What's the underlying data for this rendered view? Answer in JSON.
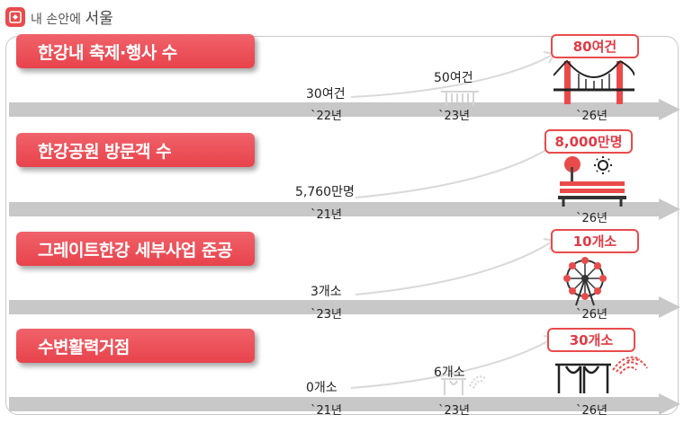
{
  "brand": {
    "prefix": "내 손안에",
    "name": "서울"
  },
  "colors": {
    "accent": "#e94b4b",
    "arrow": "#c8c8c8",
    "curve": "#d9d9d9"
  },
  "chart_data": [
    {
      "type": "line",
      "title": "한강내 축제·행사 수",
      "points": [
        {
          "x": "`22년",
          "label": "30여건",
          "value": 30
        },
        {
          "x": "`23년",
          "label": "50여건",
          "value": 50
        },
        {
          "x": "`26년",
          "label": "80여건",
          "value": 80,
          "target": true
        }
      ]
    },
    {
      "type": "line",
      "title": "한강공원 방문객 수",
      "points": [
        {
          "x": "`21년",
          "label": "5,760만명",
          "value": 5760
        },
        {
          "x": "`26년",
          "label": "8,000만명",
          "value": 8000,
          "target": true
        }
      ]
    },
    {
      "type": "line",
      "title": "그레이트한강 세부사업 준공",
      "points": [
        {
          "x": "`23년",
          "label": "3개소",
          "value": 3
        },
        {
          "x": "`26년",
          "label": "10개소",
          "value": 10,
          "target": true
        }
      ]
    },
    {
      "type": "line",
      "title": "수변활력거점",
      "points": [
        {
          "x": "`21년",
          "label": "0개소",
          "value": 0
        },
        {
          "x": "`23년",
          "label": "6개소",
          "value": 6
        },
        {
          "x": "`26년",
          "label": "30개소",
          "value": 30,
          "target": true
        }
      ]
    }
  ],
  "icons": [
    "bridge-icon",
    "park-bench-icon",
    "ferris-wheel-icon",
    "fountain-bridge-icon"
  ]
}
